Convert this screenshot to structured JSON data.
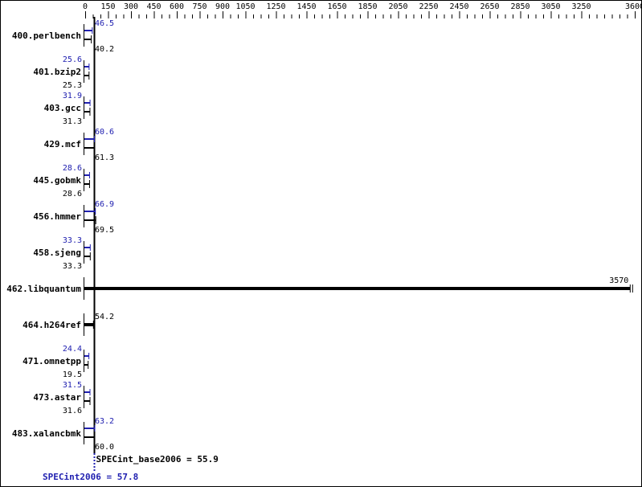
{
  "chart_data": {
    "type": "bar",
    "orientation": "horizontal",
    "xlim": [
      0,
      3600
    ],
    "ticks": [
      0,
      150,
      300,
      450,
      600,
      750,
      900,
      1050,
      1250,
      1450,
      1650,
      1850,
      2050,
      2250,
      2450,
      2650,
      2850,
      3050,
      3250,
      3600
    ],
    "categories": [
      "400.perlbench",
      "401.bzip2",
      "403.gcc",
      "429.mcf",
      "445.gobmk",
      "456.hmmer",
      "458.sjeng",
      "462.libquantum",
      "464.h264ref",
      "471.omnetpp",
      "473.astar",
      "483.xalancbmk"
    ],
    "series": [
      {
        "name": "SPECint2006",
        "color": "#2020b0",
        "values": [
          46.5,
          25.6,
          31.9,
          60.6,
          28.6,
          66.9,
          33.3,
          null,
          null,
          24.4,
          31.5,
          63.2
        ]
      },
      {
        "name": "SPECint_base2006",
        "color": "#000000",
        "values": [
          40.2,
          25.3,
          31.3,
          61.3,
          28.6,
          69.5,
          33.3,
          3570,
          54.2,
          19.5,
          31.6,
          60.0
        ]
      }
    ],
    "summary": {
      "base_label": "SPECint_base2006 = 55.9",
      "base_value": 55.9,
      "peak_label": "SPECint2006 = 57.8",
      "peak_value": 57.8
    }
  }
}
